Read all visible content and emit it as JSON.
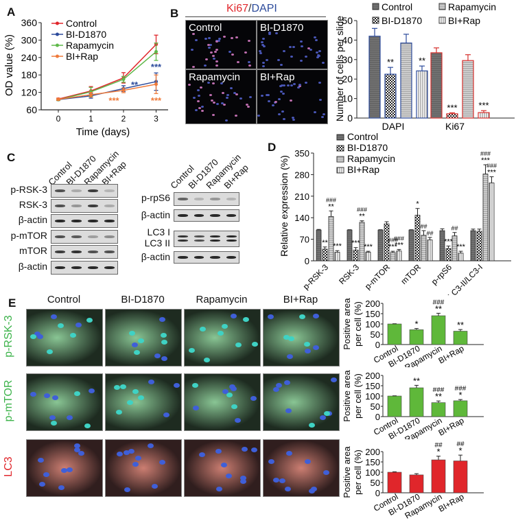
{
  "panels": {
    "A": {
      "label": "A"
    },
    "B": {
      "label": "B",
      "title_ki67": "Ki67",
      "title_sep": "/",
      "title_dapi": "DAPI",
      "images": [
        "Control",
        "BI-D1870",
        "Rapamycin",
        "BI+Rap"
      ]
    },
    "C": {
      "label": "C",
      "lanes": [
        "Control",
        "BI-D1870",
        "Rapamycin",
        "BI+Rap"
      ],
      "blots_left": [
        "p-RSK-3",
        "RSK-3",
        "β-actin",
        "p-mTOR",
        "mTOR",
        "β-actin"
      ],
      "blots_right": [
        "p-rpS6",
        "β-actin",
        "LC3 I",
        "LC3 II",
        "β-actin"
      ]
    },
    "D": {
      "label": "D"
    },
    "E": {
      "label": "E",
      "columns": [
        "Control",
        "BI-D1870",
        "Rapamycin",
        "BI+Rap"
      ],
      "rows": [
        "p-RSK-3",
        "p-mTOR",
        "LC3"
      ],
      "row_colors": [
        "#3cb34a",
        "#3cb34a",
        "#e0262b"
      ]
    }
  },
  "chart_data": [
    {
      "id": "A",
      "type": "line",
      "title": "",
      "xlabel": "Time (days)",
      "ylabel": "OD value (%)",
      "x": [
        0,
        1,
        2,
        3
      ],
      "ylim": [
        60,
        360
      ],
      "yticks": [
        60,
        120,
        180,
        240,
        300,
        360
      ],
      "series": [
        {
          "name": "Control",
          "color": "#e0262b",
          "marker": "circle",
          "values": [
            97,
            125,
            170,
            285
          ],
          "errors": [
            3,
            15,
            18,
            32
          ]
        },
        {
          "name": "BI-D1870",
          "color": "#2b4a9b",
          "marker": "square",
          "values": [
            95,
            108,
            133,
            157
          ],
          "errors": [
            3,
            8,
            10,
            30
          ]
        },
        {
          "name": "Rapamycin",
          "color": "#5fb84a",
          "marker": "triangle",
          "values": [
            95,
            122,
            165,
            260
          ],
          "errors": [
            3,
            15,
            10,
            30
          ]
        },
        {
          "name": "BI+Rap",
          "color": "#ef7a3a",
          "marker": "inverted-triangle",
          "values": [
            96,
            112,
            127,
            148
          ],
          "errors": [
            3,
            8,
            8,
            32
          ]
        }
      ],
      "annotations": [
        {
          "x": 2,
          "text": "**",
          "color": "#2b4a9b"
        },
        {
          "x": 3,
          "text": "***",
          "color": "#2b4a9b"
        },
        {
          "x": 2,
          "text": "***",
          "color": "#ef7a3a"
        },
        {
          "x": 3,
          "text": "***",
          "color": "#ef7a3a"
        }
      ],
      "legend_position": "top-left"
    },
    {
      "id": "B",
      "type": "bar",
      "title": "",
      "xlabel": "",
      "ylabel": "Number of cells per slide",
      "categories": [
        "DAPI",
        "Ki67"
      ],
      "ylim": [
        0,
        50
      ],
      "yticks": [
        0,
        10,
        20,
        30,
        40,
        50
      ],
      "series": [
        {
          "name": "Control",
          "values": [
            42,
            33.5
          ],
          "errors": [
            4,
            2.5
          ]
        },
        {
          "name": "BI-D1870",
          "values": [
            22.5,
            2.2
          ],
          "errors": [
            3.5,
            0.5
          ]
        },
        {
          "name": "Rapamycin",
          "values": [
            38.5,
            29.5
          ],
          "errors": [
            4.5,
            3
          ]
        },
        {
          "name": "BI+Rap",
          "values": [
            24.2,
            2.8
          ],
          "errors": [
            2.5,
            1
          ]
        }
      ],
      "annotations": {
        "DAPI": [
          "",
          "**",
          "",
          "**"
        ],
        "Ki67": [
          "",
          "***",
          "",
          "***"
        ]
      },
      "legend_position": "top"
    },
    {
      "id": "D",
      "type": "bar",
      "title": "",
      "xlabel": "",
      "ylabel": "Relative expression (%)",
      "categories": [
        "p-RSK-3",
        "RSK-3",
        "p-mTOR",
        "mTOR",
        "p-rpS6",
        "LC3-II/LC3-I"
      ],
      "ylim": [
        0,
        350
      ],
      "yticks": [
        0,
        70,
        140,
        210,
        280,
        350
      ],
      "series": [
        {
          "name": "Control",
          "values": [
            100,
            100,
            100,
            100,
            98,
            98
          ],
          "errors": [
            2,
            1,
            1,
            1,
            6,
            5
          ]
        },
        {
          "name": "BI-D1870",
          "values": [
            38,
            35,
            120,
            148,
            40,
            96
          ],
          "errors": [
            7,
            8,
            7,
            22,
            8,
            7
          ]
        },
        {
          "name": "Rapamycin",
          "values": [
            144,
            125,
            27,
            83,
            81,
            282
          ],
          "errors": [
            18,
            5,
            4,
            15,
            11,
            30
          ]
        },
        {
          "name": "BI+Rap",
          "values": [
            28,
            28,
            32,
            68,
            25,
            253
          ],
          "errors": [
            5,
            3,
            5,
            8,
            6,
            20
          ]
        }
      ],
      "annotations": {
        "p-RSK-3": [
          "",
          "**",
          "###\n**",
          "***"
        ],
        "RSK-3": [
          "",
          "***",
          "###\n**",
          "***"
        ],
        "p-mTOR": [
          "",
          "",
          "###\n***",
          "###\n***"
        ],
        "mTOR": [
          "",
          "*",
          "##",
          "##"
        ],
        "p-rpS6": [
          "",
          "***",
          "##",
          "***"
        ],
        "LC3-II/LC3-I": [
          "",
          "",
          "###\n***",
          "###\n***"
        ]
      },
      "legend_position": "top-left"
    },
    {
      "id": "E1",
      "type": "bar",
      "ylabel": "Positive area per cell (%)",
      "color": "#5fb83a",
      "categories": [
        "Control",
        "BI-D1870",
        "Rapamycin",
        "BI+Rap"
      ],
      "ylim": [
        0,
        200
      ],
      "yticks": [
        0,
        50,
        100,
        150,
        200
      ],
      "values": [
        100,
        72,
        140,
        65
      ],
      "errors": [
        1,
        6,
        12,
        8
      ],
      "annotations": [
        "",
        "*",
        "###\n**",
        "**"
      ]
    },
    {
      "id": "E2",
      "type": "bar",
      "ylabel": "Positive area per cell (%)",
      "color": "#5fb83a",
      "categories": [
        "Control",
        "BI-D1870",
        "Rapamycin",
        "BI+Rap"
      ],
      "ylim": [
        0,
        200
      ],
      "yticks": [
        0,
        50,
        100,
        150,
        200
      ],
      "values": [
        100,
        140,
        68,
        77
      ],
      "errors": [
        1,
        12,
        8,
        6
      ],
      "annotations": [
        "",
        "**",
        "###\n**",
        "###\n*"
      ]
    },
    {
      "id": "E3",
      "type": "bar",
      "ylabel": "Positive area per cell (%)",
      "color": "#e0262b",
      "categories": [
        "Control",
        "BI-D1870",
        "Rapamycin",
        "BI+Rap"
      ],
      "ylim": [
        0,
        200
      ],
      "yticks": [
        0,
        50,
        100,
        150,
        200
      ],
      "values": [
        100,
        87,
        160,
        155
      ],
      "errors": [
        2,
        6,
        18,
        28
      ],
      "annotations": [
        "",
        "",
        "##\n*",
        "##\n*"
      ]
    }
  ]
}
